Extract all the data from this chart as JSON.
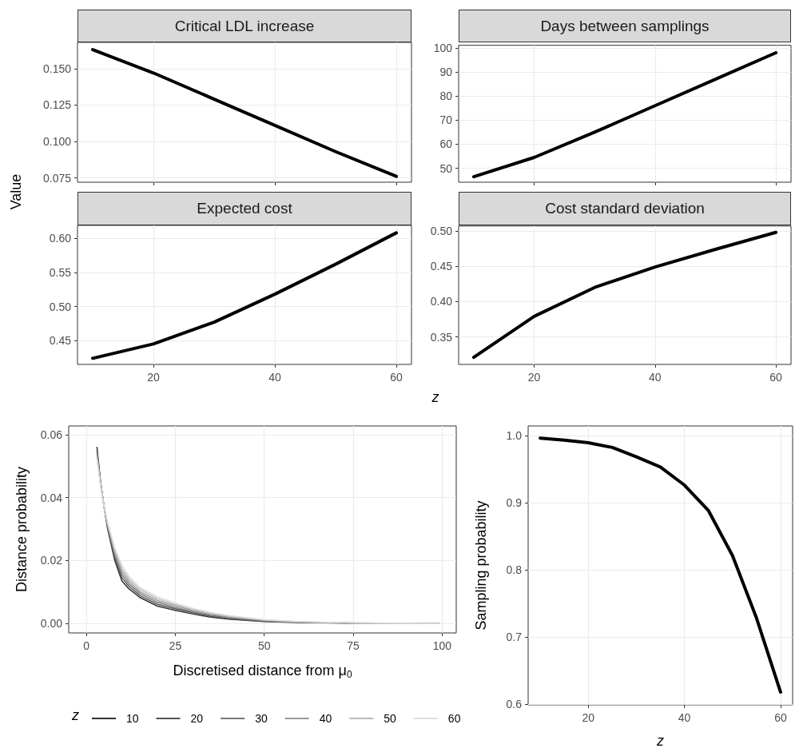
{
  "chart_data": [
    {
      "type": "line",
      "title": "Critical LDL increase",
      "ylabel": "Value",
      "x": [
        10,
        20,
        30,
        40,
        50,
        60
      ],
      "series": [
        {
          "color": "#000000",
          "values": [
            0.163,
            0.147,
            0.129,
            0.111,
            0.093,
            0.076
          ]
        }
      ],
      "xlim": [
        7.5,
        62.5
      ],
      "ylim": [
        0.072,
        0.168
      ],
      "xticks": [
        20,
        40,
        60
      ],
      "yticks": [
        0.075,
        {
          "value": 0.1,
          "label": "0.100"
        },
        0.125,
        {
          "value": 0.15,
          "label": "0.150"
        }
      ],
      "tick_labels": "y",
      "grid": true
    },
    {
      "type": "line",
      "title": "Days between samplings",
      "x": [
        10,
        20,
        30,
        40,
        50,
        60
      ],
      "series": [
        {
          "color": "#000000",
          "values": [
            46.5,
            54.5,
            65,
            76,
            87,
            98
          ]
        }
      ],
      "xlim": [
        7.5,
        62.5
      ],
      "ylim": [
        44.2,
        101.1
      ],
      "xticks": [
        20,
        40,
        60
      ],
      "yticks": [
        50,
        60,
        70,
        80,
        90,
        100
      ],
      "tick_labels": "y",
      "grid": true
    },
    {
      "type": "line",
      "title": "Expected cost",
      "xlabel": "z",
      "x": [
        10,
        20,
        30,
        40,
        50,
        60
      ],
      "series": [
        {
          "color": "#000000",
          "values": [
            0.424,
            0.445,
            0.477,
            0.518,
            0.562,
            0.608
          ]
        }
      ],
      "xlim": [
        7.5,
        62.5
      ],
      "ylim": [
        0.415,
        0.619
      ],
      "xticks": [
        20,
        40,
        60
      ],
      "yticks": [
        0.45,
        {
          "value": 0.5,
          "label": "0.50"
        },
        0.55,
        {
          "value": 0.6,
          "label": "0.60"
        }
      ],
      "grid": true
    },
    {
      "type": "line",
      "title": "Cost standard deviation",
      "x": [
        10,
        20,
        30,
        40,
        50,
        60
      ],
      "series": [
        {
          "color": "#000000",
          "values": [
            0.321,
            0.379,
            0.42,
            0.449,
            0.474,
            0.498
          ]
        }
      ],
      "xlim": [
        7.5,
        62.5
      ],
      "ylim": [
        0.311,
        0.507
      ],
      "xticks": [
        20,
        40,
        60
      ],
      "yticks": [
        0.35,
        {
          "value": 0.4,
          "label": "0.40"
        },
        0.45,
        {
          "value": 0.5,
          "label": "0.50"
        }
      ],
      "grid": true
    },
    {
      "type": "line",
      "xlabel": "Discretised distance from μ$_{0}$",
      "ylabel": "Distance probability",
      "legend_title": "z",
      "legend": "bottom",
      "x": [
        3,
        4,
        5,
        6,
        7,
        8,
        10,
        12,
        15,
        20,
        25,
        30,
        35,
        40,
        50,
        60,
        75,
        99
      ],
      "series": [
        {
          "name": "10",
          "color": "#333333",
          "values": [
            0.056,
            0.045,
            0.037,
            0.03,
            0.025,
            0.02,
            0.0135,
            0.011,
            0.0083,
            0.0055,
            0.0042,
            0.003,
            0.002,
            0.0014,
            0.0006,
            0.0003,
            0.0001,
            0
          ]
        },
        {
          "name": "20",
          "color": "#555555",
          "values": [
            0.0552,
            0.0448,
            0.037,
            0.0304,
            0.0256,
            0.0208,
            0.0145,
            0.0118,
            0.0089,
            0.0061,
            0.0047,
            0.0034,
            0.0023,
            0.0016,
            0.0007,
            0.0004,
            0.0001,
            0
          ]
        },
        {
          "name": "30",
          "color": "#777777",
          "values": [
            0.0544,
            0.0446,
            0.037,
            0.0308,
            0.0262,
            0.0216,
            0.0155,
            0.0126,
            0.0096,
            0.0067,
            0.0051,
            0.0037,
            0.0026,
            0.0018,
            0.0008,
            0.0004,
            0.0001,
            0
          ]
        },
        {
          "name": "40",
          "color": "#999999",
          "values": [
            0.0536,
            0.0444,
            0.037,
            0.0312,
            0.0268,
            0.0224,
            0.0165,
            0.0134,
            0.0102,
            0.0073,
            0.0056,
            0.0041,
            0.0029,
            0.0021,
            0.001,
            0.0005,
            0.0002,
            0
          ]
        },
        {
          "name": "50",
          "color": "#bbbbbb",
          "values": [
            0.0528,
            0.0442,
            0.037,
            0.0316,
            0.0274,
            0.0232,
            0.0175,
            0.0142,
            0.0109,
            0.0079,
            0.006,
            0.0044,
            0.0032,
            0.0023,
            0.0011,
            0.0005,
            0.0002,
            0
          ]
        },
        {
          "name": "60",
          "color": "#dddddd",
          "values": [
            0.052,
            0.044,
            0.037,
            0.032,
            0.028,
            0.024,
            0.0185,
            0.015,
            0.0115,
            0.0085,
            0.0065,
            0.0048,
            0.0035,
            0.0025,
            0.0012,
            0.0006,
            0.0002,
            0
          ]
        }
      ],
      "xlim": [
        -4.95,
        103.95
      ],
      "ylim": [
        -0.003,
        0.0628
      ],
      "xticks": [
        0,
        25,
        50,
        75,
        100
      ],
      "yticks": [
        {
          "value": 0,
          "label": "0.00"
        },
        0.02,
        0.04,
        0.06
      ],
      "grid": true
    },
    {
      "type": "line",
      "xlabel": "z",
      "ylabel": "Sampling probability",
      "x": [
        10,
        15,
        20,
        25,
        30,
        35,
        40,
        45,
        50,
        55,
        60
      ],
      "series": [
        {
          "color": "#000000",
          "values": [
            0.996,
            0.993,
            0.989,
            0.982,
            0.968,
            0.953,
            0.926,
            0.888,
            0.821,
            0.728,
            0.618
          ]
        }
      ],
      "xlim": [
        7.5,
        62.5
      ],
      "ylim": [
        0.599,
        1.014
      ],
      "xticks": [
        20,
        40,
        60
      ],
      "yticks": [
        0.6,
        0.7,
        0.8,
        0.9,
        {
          "value": 1,
          "label": "1.0"
        }
      ],
      "grid": true
    }
  ]
}
